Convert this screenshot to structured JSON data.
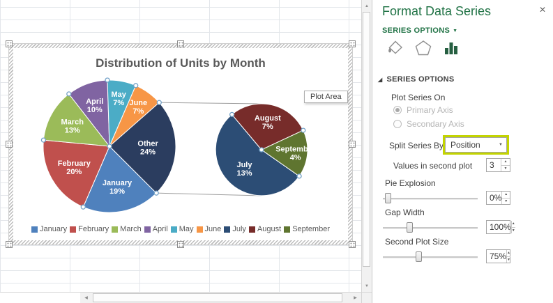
{
  "chart_data": {
    "type": "pie-of-pie",
    "title": "Distribution of Units by Month",
    "categories": [
      "January",
      "February",
      "March",
      "April",
      "May",
      "June",
      "July",
      "August",
      "September"
    ],
    "values_pct": [
      19,
      20,
      13,
      10,
      7,
      7,
      13,
      7,
      4
    ],
    "other_label": "Other",
    "other_pct": 24,
    "values_in_second_plot": 3,
    "plot_area_label": "Plot Area",
    "legend_position": "bottom",
    "main_pie": {
      "start_angle": 135,
      "slices": [
        {
          "name": "January",
          "pct": 19,
          "color": "#4F81BD",
          "label_r": 0.62
        },
        {
          "name": "February",
          "pct": 20,
          "color": "#C0504D",
          "label_r": 0.62
        },
        {
          "name": "March",
          "pct": 13,
          "color": "#9BBB59",
          "label_r": 0.64
        },
        {
          "name": "April",
          "pct": 10,
          "color": "#8064A2",
          "label_r": 0.66
        },
        {
          "name": "May",
          "pct": 7,
          "color": "#4BACC6",
          "label_r": 0.74
        },
        {
          "name": "June",
          "pct": 7,
          "color": "#F79646",
          "label_r": 0.74
        },
        {
          "name": "Other",
          "pct": 24,
          "color": "#2B3D5F",
          "label_r": 0.58
        }
      ]
    },
    "second_pie": {
      "start_angle": 125,
      "slices": [
        {
          "name": "July",
          "pct": 13,
          "color": "#2C4D75",
          "label_r": 0.55
        },
        {
          "name": "August",
          "pct": 7,
          "color": "#772C2A",
          "label_r": 0.62
        },
        {
          "name": "September",
          "pct": 4,
          "color": "#5F7530",
          "label_r": 0.74
        }
      ]
    },
    "legend_items": [
      {
        "label": "January",
        "color": "#4F81BD"
      },
      {
        "label": "February",
        "color": "#C0504D"
      },
      {
        "label": "March",
        "color": "#9BBB59"
      },
      {
        "label": "April",
        "color": "#8064A2"
      },
      {
        "label": "May",
        "color": "#4BACC6"
      },
      {
        "label": "June",
        "color": "#F79646"
      },
      {
        "label": "July",
        "color": "#2C4D75"
      },
      {
        "label": "August",
        "color": "#772C2A"
      },
      {
        "label": "September",
        "color": "#5F7530"
      }
    ]
  },
  "panel": {
    "title": "Format Data Series",
    "options_tab_label": "SERIES OPTIONS",
    "section_header": "SERIES OPTIONS",
    "plot_series_on_label": "Plot Series On",
    "primary_axis_label": "Primary Axis",
    "secondary_axis_label": "Secondary Axis",
    "split_series_by_label": "Split Series By",
    "split_series_by_value": "Position",
    "values_in_second_plot_label": "Values in second plot",
    "values_in_second_plot_value": "3",
    "pie_explosion": {
      "label": "Pie Explosion",
      "value": "0%",
      "fraction": 0.02
    },
    "gap_width": {
      "label": "Gap Width",
      "value": "100%",
      "fraction": 0.27
    },
    "second_plot_size": {
      "label": "Second Plot Size",
      "value": "75%",
      "fraction": 0.37
    }
  },
  "glyphs": {
    "close": "✕",
    "dropdown": "▼",
    "section_triangle": "◢",
    "spin_up": "▲",
    "spin_down": "▼",
    "scroll_up": "▲",
    "scroll_down": "▼",
    "scroll_left": "◀",
    "scroll_right": "▶"
  },
  "colors": {
    "accent_green": "#217346",
    "highlight": "#c3d400",
    "connector_gray": "#9d9d9d",
    "handle_blue": "#74a2c8"
  }
}
